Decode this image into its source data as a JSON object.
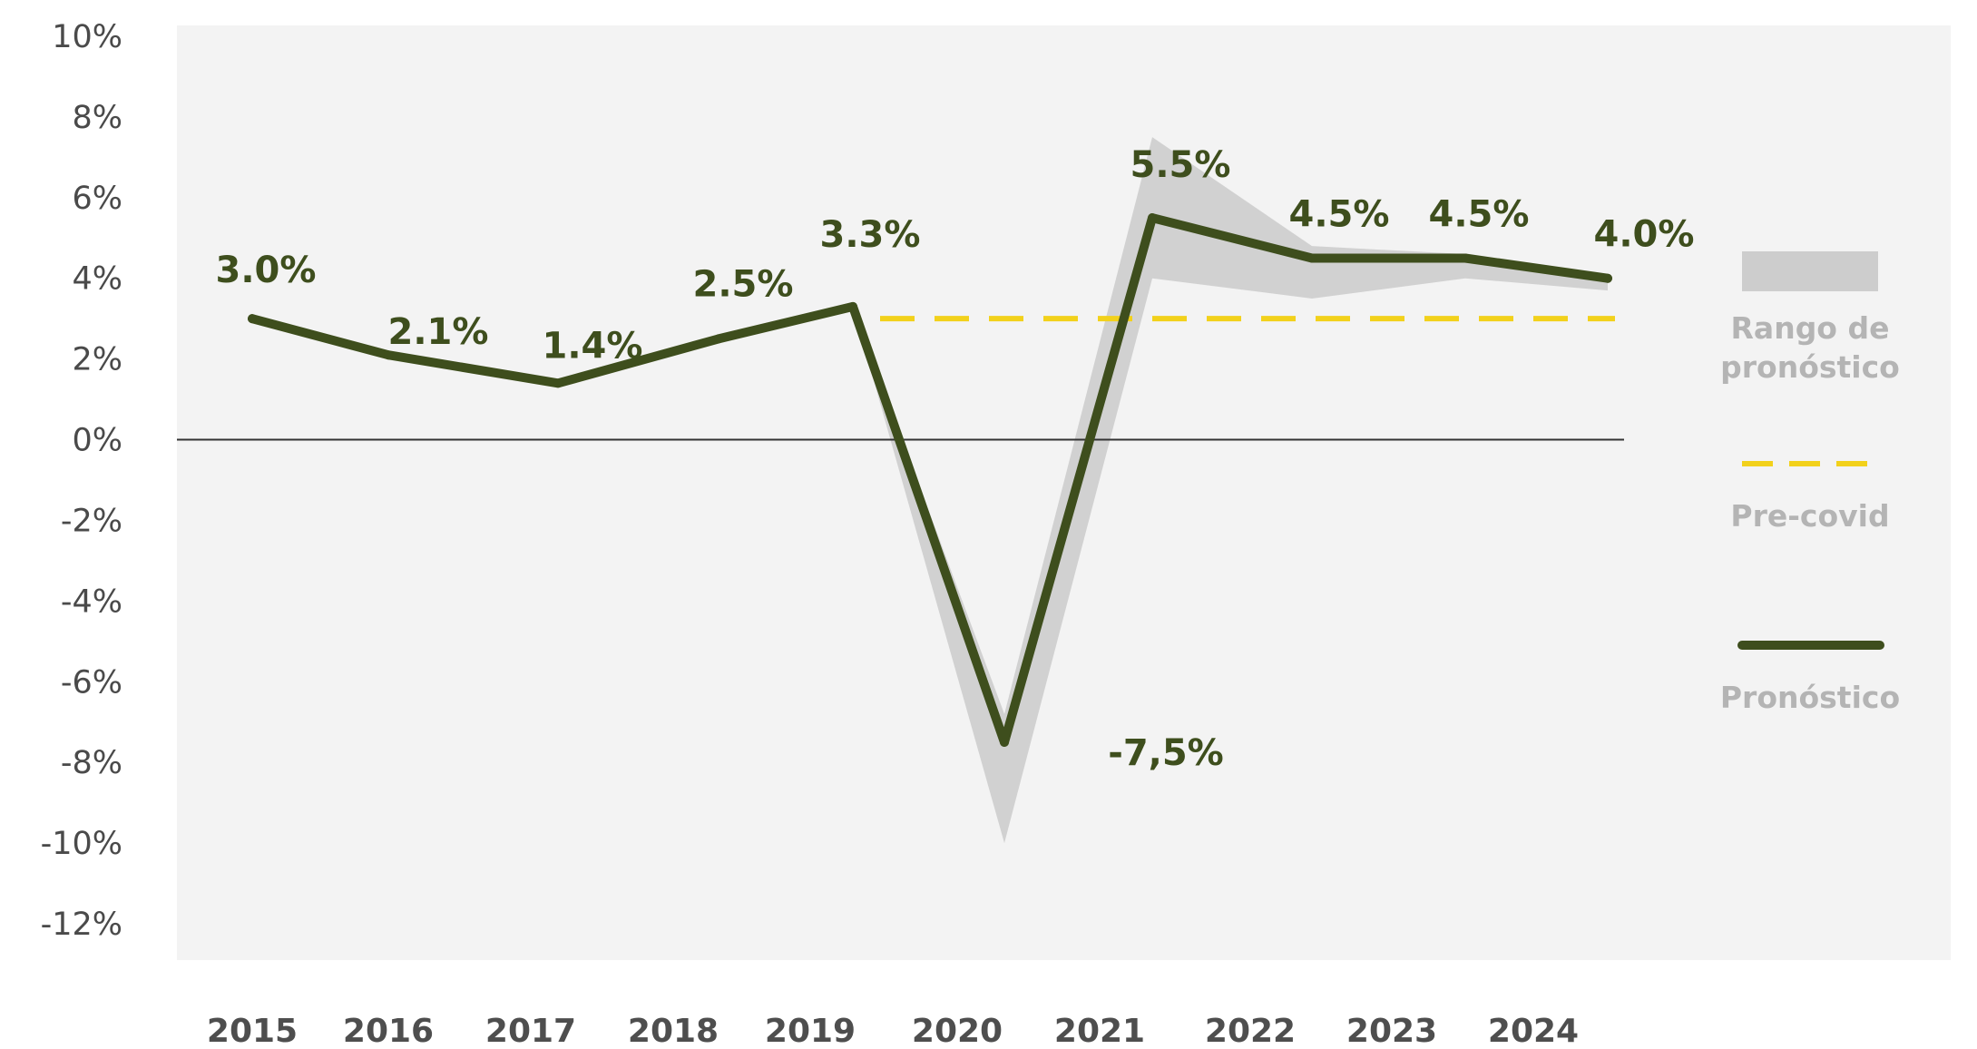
{
  "chart_data": {
    "type": "line",
    "categories": [
      "2015",
      "2016",
      "2017",
      "2018",
      "2019",
      "2020",
      "2021",
      "2022",
      "2023",
      "2024"
    ],
    "y_ticks": [
      "10%",
      "8%",
      "6%",
      "4%",
      "2%",
      "0%",
      "-2%",
      "-4%",
      "-6%",
      "-8%",
      "-10%",
      "-12%"
    ],
    "ylim": [
      -12,
      10
    ],
    "grid": false,
    "legend_position": "right",
    "series": [
      {
        "name": "Pronóstico",
        "color": "#3e4e1d",
        "style": "solid",
        "values": [
          3.0,
          2.1,
          1.4,
          2.5,
          3.3,
          -7.5,
          5.5,
          4.5,
          4.5,
          4.0
        ],
        "labels": [
          "3.0%",
          "2.1%",
          "1.4%",
          "2.5%",
          "3.3%",
          "-7,5%",
          "5.5%",
          "4.5%",
          "4.5%",
          "4.0%"
        ]
      },
      {
        "name": "Pre-covid",
        "color": "#f2d11b",
        "style": "dashed",
        "x_range": [
          "2019",
          "2024"
        ],
        "value": 3.0
      },
      {
        "name": "Rango de pronóstico",
        "color": "#c6c6c6",
        "style": "band",
        "points": [
          {
            "x": "2019",
            "low": 3.3,
            "high": 3.3
          },
          {
            "x": "2020",
            "low": -10.0,
            "high": -6.8
          },
          {
            "x": "2021",
            "low": 4.0,
            "high": 7.5
          },
          {
            "x": "2022",
            "low": 3.5,
            "high": 4.8
          },
          {
            "x": "2023",
            "low": 4.0,
            "high": 4.6
          },
          {
            "x": "2024",
            "low": 3.7,
            "high": 4.1
          }
        ]
      }
    ],
    "legend": [
      {
        "label": "Rango de pronóstico",
        "lines": [
          "Rango de",
          "pronóstico"
        ],
        "kind": "band",
        "color": "#cdcdcd"
      },
      {
        "label": "Pre-covid",
        "lines": [
          "Pre-covid"
        ],
        "kind": "dashed",
        "color": "#f2d11b"
      },
      {
        "label": "Pronóstico",
        "lines": [
          "Pronóstico"
        ],
        "kind": "solid",
        "color": "#3e4e1d"
      }
    ]
  }
}
